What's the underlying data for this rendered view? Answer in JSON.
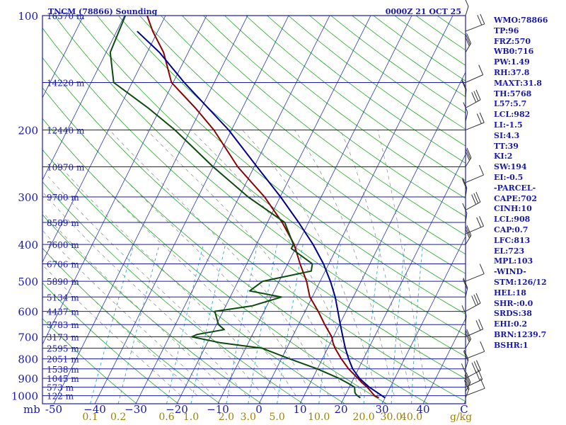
{
  "header": {
    "station": "TNCM (78866) Sounding",
    "time": "0000Z 21 OCT 25"
  },
  "indices": [
    "WMO:78866",
    "TP:96",
    "FRZ:570",
    "WB0:716",
    "PW:1.49",
    "RH:37.8",
    "MAXT:31.8",
    "TH:5768",
    "L57:5.7",
    "LCL:982",
    "LI:-1.5",
    "SI:4.3",
    "TT:39",
    "KI:2",
    "SW:194",
    "EI:-0.5",
    "-PARCEL-",
    "CAPE:702",
    "CINH:10",
    "LCL:908",
    "CAP:0.7",
    "LFC:813",
    "EL:723",
    "MPL:103",
    "-WIND-",
    "STM:126/12",
    "HEL:18",
    "SHR-:0.0",
    "SRDS:38",
    "EHI:0.2",
    "BRN:1239.7",
    "BSHR:1"
  ],
  "chart_data": {
    "type": "line",
    "title": "TNCM (78866) Sounding",
    "xlabel": "",
    "ylabel": "mb",
    "temp_unit_label": "C",
    "mixing_ratio_unit": "g/kg",
    "pressure_ticks": [
      100,
      200,
      300,
      400,
      500,
      600,
      700,
      800,
      900,
      1000
    ],
    "pressure_tick_labels": [
      "100",
      "200",
      "300",
      "400",
      "500",
      "600",
      "700",
      "800",
      "900",
      "1000"
    ],
    "temperature_ticks": [
      -50,
      -40,
      -30,
      -20,
      -10,
      0,
      10,
      20,
      30,
      40
    ],
    "temperature_tick_labels": [
      "-50",
      "−40",
      "−30",
      "−20",
      "−10",
      "0",
      "10",
      "20",
      "30",
      "40"
    ],
    "mixing_ratio_labels": [
      "0.1",
      "0.2",
      "0.6",
      "1.0",
      "2.0",
      "3.0",
      "5.0",
      "10.0",
      "20.0",
      "30.0",
      "40.0"
    ],
    "mixing_ratio_values": [
      0.1,
      0.2,
      0.6,
      1.0,
      2.0,
      3.0,
      5.0,
      10.0,
      20.0,
      30.0,
      40.0
    ],
    "heights": [
      {
        "p": 100,
        "label": "16570 m"
      },
      {
        "p": 150,
        "label": "14220 m"
      },
      {
        "p": 200,
        "label": "12440 m"
      },
      {
        "p": 250,
        "label": "10970 m"
      },
      {
        "p": 300,
        "label": "9700 m"
      },
      {
        "p": 350,
        "label": "8589 m"
      },
      {
        "p": 400,
        "label": "7600 m"
      },
      {
        "p": 450,
        "label": "6706 m"
      },
      {
        "p": 500,
        "label": "5890 m"
      },
      {
        "p": 550,
        "label": "5134 m"
      },
      {
        "p": 600,
        "label": "4437 m"
      },
      {
        "p": 650,
        "label": "3783 m"
      },
      {
        "p": 700,
        "label": "3173 m"
      },
      {
        "p": 750,
        "label": "2595 m"
      },
      {
        "p": 800,
        "label": "2051 m"
      },
      {
        "p": 850,
        "label": "1538 m"
      },
      {
        "p": 900,
        "label": "1045 m"
      },
      {
        "p": 950,
        "label": "573 m"
      },
      {
        "p": 1000,
        "label": "122 m"
      }
    ],
    "series": [
      {
        "name": "",
        "color": "#8b0000",
        "points": [
          [
            1013,
            28.5
          ],
          [
            1000,
            27.2
          ],
          [
            950,
            24.4
          ],
          [
            925,
            22.6
          ],
          [
            900,
            21.0
          ],
          [
            850,
            17.6
          ],
          [
            800,
            14.6
          ],
          [
            750,
            11.8
          ],
          [
            725,
            10.6
          ],
          [
            700,
            9.6
          ],
          [
            650,
            6.4
          ],
          [
            600,
            3.2
          ],
          [
            560,
            0.2
          ],
          [
            550,
            -0.6
          ],
          [
            500,
            -3.3
          ],
          [
            450,
            -7.0
          ],
          [
            400,
            -10.8
          ],
          [
            350,
            -16.4
          ],
          [
            300,
            -23.8
          ],
          [
            250,
            -34.0
          ],
          [
            200,
            -44.3
          ],
          [
            175,
            -51.5
          ],
          [
            150,
            -60.4
          ],
          [
            125,
            -66.0
          ],
          [
            110,
            -71.2
          ],
          [
            100,
            -74.5
          ]
        ]
      },
      {
        "name": "",
        "color": "#0d4a0d",
        "points": [
          [
            1013,
            24.0
          ],
          [
            1000,
            23.0
          ],
          [
            990,
            22.4
          ],
          [
            980,
            22.0
          ],
          [
            950,
            21.3
          ],
          [
            925,
            19.0
          ],
          [
            900,
            16.4
          ],
          [
            850,
            10.0
          ],
          [
            800,
            2.0
          ],
          [
            750,
            -6.0
          ],
          [
            725,
            -17.0
          ],
          [
            700,
            -24.5
          ],
          [
            690,
            -23.5
          ],
          [
            670,
            -17.5
          ],
          [
            650,
            -19.5
          ],
          [
            600,
            -22.0
          ],
          [
            580,
            -13.5
          ],
          [
            550,
            -7.5
          ],
          [
            530,
            -16.0
          ],
          [
            500,
            -14.0
          ],
          [
            470,
            -3.4
          ],
          [
            450,
            -4.0
          ],
          [
            410,
            -11.0
          ],
          [
            400,
            -11.0
          ],
          [
            350,
            -15.8
          ],
          [
            300,
            -27.8
          ],
          [
            250,
            -40.0
          ],
          [
            225,
            -46.5
          ],
          [
            200,
            -53.8
          ],
          [
            175,
            -63.0
          ],
          [
            150,
            -74.5
          ],
          [
            125,
            -79.0
          ],
          [
            100,
            -79.8
          ]
        ]
      },
      {
        "name": "",
        "color": "#00008b",
        "points": [
          [
            1013,
            30.0
          ],
          [
            950,
            24.9
          ],
          [
            900,
            21.4
          ],
          [
            850,
            18.6
          ],
          [
            800,
            16.4
          ],
          [
            750,
            14.3
          ],
          [
            700,
            12.3
          ],
          [
            650,
            10.2
          ],
          [
            600,
            8.0
          ],
          [
            550,
            5.6
          ],
          [
            500,
            2.5
          ],
          [
            450,
            -1.3
          ],
          [
            400,
            -6.2
          ],
          [
            350,
            -12.4
          ],
          [
            300,
            -19.9
          ],
          [
            250,
            -29.3
          ],
          [
            200,
            -40.7
          ],
          [
            150,
            -57.3
          ],
          [
            125,
            -67.0
          ],
          [
            110,
            -75.0
          ]
        ]
      }
    ],
    "ylim": [
      100,
      1050
    ],
    "xlim": [
      -50,
      50
    ]
  }
}
